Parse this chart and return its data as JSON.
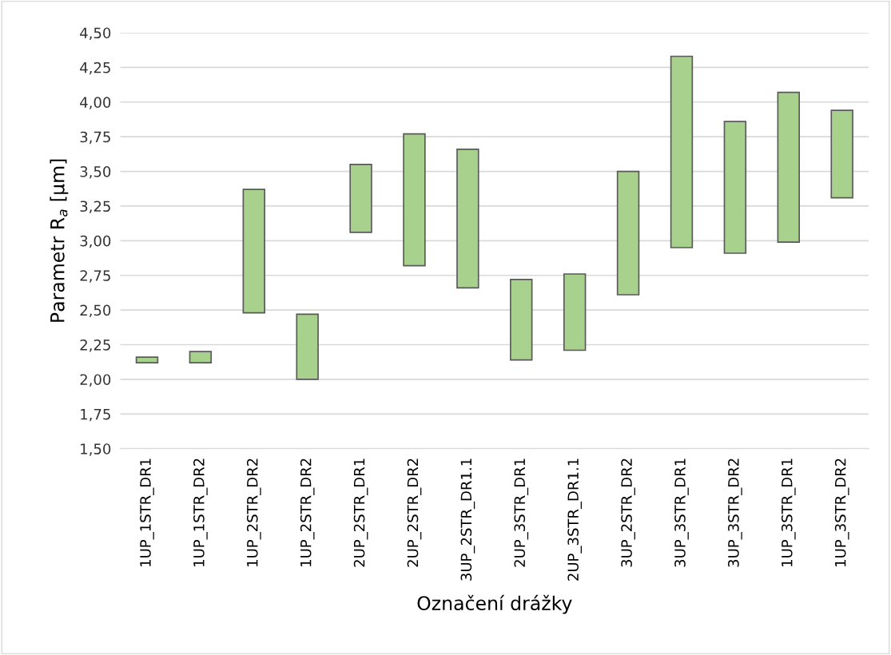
{
  "chart_data": {
    "type": "bar",
    "xlabel": "Označení drážky",
    "ylabel": "Parametr R$_{a}$ [µm]",
    "categories": [
      "1UP_1STR_DR1",
      "1UP_1STR_DR2",
      "1UP_2STR_DR2",
      "1UP_2STR_DR2",
      "2UP_2STR_DR1",
      "2UP_2STR_DR2",
      "3UP_2STR_DR1.1",
      "2UP_3STR_DR1",
      "2UP_3STR_DR1.1",
      "3UP_2STR_DR2",
      "3UP_3STR_DR1",
      "3UP_3STR_DR2",
      "1UP_3STR_DR1",
      "1UP_3STR_DR2"
    ],
    "base": [
      2.12,
      2.12,
      2.48,
      2.0,
      3.06,
      2.82,
      2.66,
      2.14,
      2.21,
      2.61,
      2.95,
      2.91,
      2.99,
      3.31
    ],
    "values": [
      0.04,
      0.08,
      0.89,
      0.47,
      0.49,
      0.95,
      1.0,
      0.58,
      0.55,
      0.89,
      1.38,
      0.95,
      1.08,
      0.63
    ],
    "color": "#a9d18e",
    "ylim": [
      1.5,
      4.5
    ],
    "yticks": [
      {
        "value": 1.5,
        "label": "1,50"
      },
      {
        "value": 1.75,
        "label": "1,75"
      },
      {
        "value": 2.0,
        "label": "2,00"
      },
      {
        "value": 2.25,
        "label": "2,25"
      },
      {
        "value": 2.5,
        "label": "2,50"
      },
      {
        "value": 2.75,
        "label": "2,75"
      },
      {
        "value": 3.0,
        "label": "3,00"
      },
      {
        "value": 3.25,
        "label": "3,25"
      },
      {
        "value": 3.5,
        "label": "3,50"
      },
      {
        "value": 3.75,
        "label": "3,75"
      },
      {
        "value": 4.0,
        "label": "4,00"
      },
      {
        "value": 4.25,
        "label": "4,25"
      },
      {
        "value": 4.5,
        "label": "4,50"
      }
    ],
    "grid": "y"
  }
}
